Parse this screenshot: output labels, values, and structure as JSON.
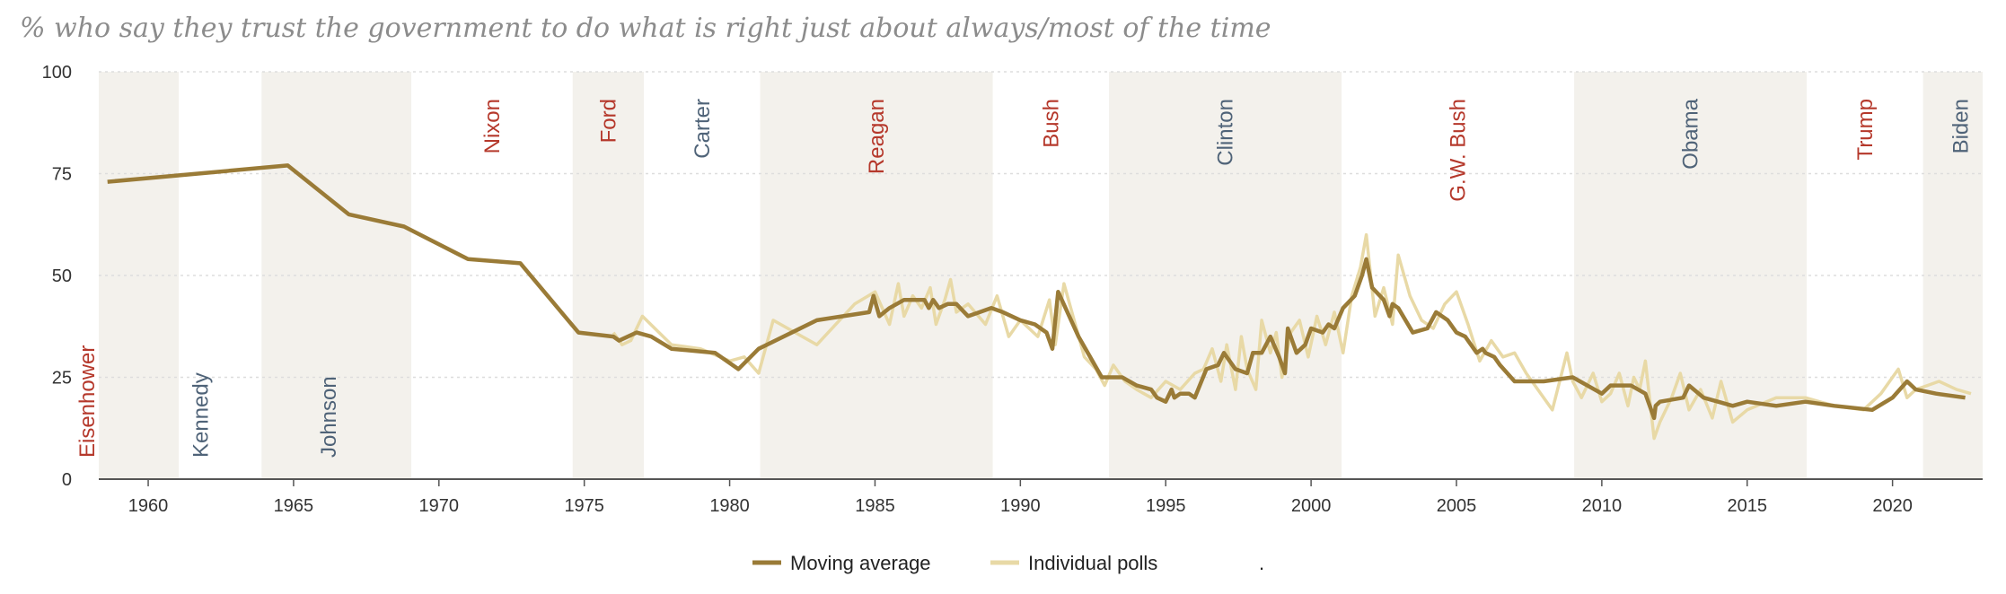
{
  "title": "% who say they trust the government to do what is right just about always/most of the time",
  "colors": {
    "republican": "#b5382b",
    "democrat": "#4f6378",
    "shade": "#f3f1ec",
    "moving_average": "#9a7b37",
    "individual_polls": "#e8d9a6"
  },
  "chart_data": {
    "type": "line",
    "title": "% who say they trust the government to do what is right just about always/most of the time",
    "xlabel": "",
    "ylabel": "",
    "xlim": [
      1958.3,
      1962.0
    ],
    "x_ticks": [
      "1960",
      "1965",
      "1970",
      "1975",
      "1980",
      "1985",
      "1990",
      "1995",
      "2000",
      "2005",
      "2010",
      "2015",
      "2020"
    ],
    "x_tick_values": [
      1960,
      1965,
      1970,
      1975,
      1980,
      1985,
      1990,
      1995,
      2000,
      2005,
      2010,
      2015,
      2020
    ],
    "ylim": [
      0,
      100
    ],
    "y_ticks": [
      "0",
      "25",
      "50",
      "75",
      "100"
    ],
    "y_tick_values": [
      0,
      25,
      50,
      75,
      100
    ],
    "grid": true,
    "legend_position": "bottom",
    "legend_extra": ".",
    "presidents": [
      {
        "name": "Eisenhower",
        "start": 1958.3,
        "end": 1961.05,
        "party": "republican",
        "label_pos": "bottom",
        "shaded": true
      },
      {
        "name": "Kennedy",
        "start": 1961.05,
        "end": 1963.9,
        "party": "democrat",
        "label_pos": "bottom",
        "shaded": false
      },
      {
        "name": "Johnson",
        "start": 1963.9,
        "end": 1969.05,
        "party": "democrat",
        "label_pos": "bottom",
        "shaded": true
      },
      {
        "name": "Nixon",
        "start": 1969.05,
        "end": 1974.6,
        "party": "republican",
        "label_pos": "top",
        "shaded": false
      },
      {
        "name": "Ford",
        "start": 1974.6,
        "end": 1977.05,
        "party": "republican",
        "label_pos": "top",
        "shaded": true
      },
      {
        "name": "Carter",
        "start": 1977.05,
        "end": 1981.05,
        "party": "democrat",
        "label_pos": "top",
        "shaded": false
      },
      {
        "name": "Reagan",
        "start": 1981.05,
        "end": 1989.05,
        "party": "republican",
        "label_pos": "top",
        "shaded": true
      },
      {
        "name": "Bush",
        "start": 1989.05,
        "end": 1993.05,
        "party": "republican",
        "label_pos": "top",
        "shaded": false
      },
      {
        "name": "Clinton",
        "start": 1993.05,
        "end": 2001.05,
        "party": "democrat",
        "label_pos": "top",
        "shaded": true
      },
      {
        "name": "G.W. Bush",
        "start": 2001.05,
        "end": 2009.05,
        "party": "republican",
        "label_pos": "top",
        "shaded": false
      },
      {
        "name": "Obama",
        "start": 2009.05,
        "end": 2017.05,
        "party": "democrat",
        "label_pos": "top",
        "shaded": true
      },
      {
        "name": "Trump",
        "start": 2017.05,
        "end": 2021.05,
        "party": "republican",
        "label_pos": "top",
        "shaded": false
      },
      {
        "name": "Biden",
        "start": 2021.05,
        "end": 2023.1,
        "party": "democrat",
        "label_pos": "top",
        "shaded": true
      }
    ],
    "series": [
      {
        "name": "Moving average",
        "x": [
          1958.6,
          1964.8,
          1966.9,
          1968.8,
          1971.0,
          1972.8,
          1974.8,
          1976.0,
          1976.2,
          1976.8,
          1977.3,
          1978.0,
          1979.5,
          1980.3,
          1981.0,
          1983.0,
          1984.8,
          1984.95,
          1985.15,
          1985.5,
          1986.0,
          1986.7,
          1986.85,
          1987.0,
          1987.2,
          1987.5,
          1987.8,
          1988.2,
          1988.6,
          1989.0,
          1989.4,
          1990.0,
          1990.5,
          1990.9,
          1991.1,
          1991.3,
          1992.0,
          1992.8,
          1993.5,
          1994.0,
          1994.5,
          1994.7,
          1995.0,
          1995.2,
          1995.3,
          1995.5,
          1995.8,
          1996.0,
          1996.4,
          1996.8,
          1997.0,
          1997.4,
          1997.8,
          1998.0,
          1998.3,
          1998.6,
          1998.9,
          1999.1,
          1999.2,
          1999.5,
          1999.8,
          2000.0,
          2000.4,
          2000.6,
          2000.8,
          2001.1,
          2001.5,
          2001.75,
          2001.9,
          2002.1,
          2002.5,
          2002.7,
          2002.8,
          2003.0,
          2003.5,
          2004.0,
          2004.3,
          2004.7,
          2005.0,
          2005.3,
          2005.7,
          2005.9,
          2006.0,
          2006.3,
          2006.5,
          2007.0,
          2007.5,
          2008.0,
          2009.0,
          2009.5,
          2010.0,
          2010.3,
          2010.6,
          2011.0,
          2011.5,
          2011.8,
          2011.85,
          2012.0,
          2012.8,
          2013.0,
          2013.5,
          2014.0,
          2014.5,
          2015.0,
          2016.0,
          2017.0,
          2018.0,
          2019.3,
          2020.0,
          2020.5,
          2020.8,
          2021.5,
          2022.5
        ],
        "y": [
          73,
          77,
          65,
          62,
          54,
          53,
          36,
          35,
          34,
          36,
          35,
          32,
          31,
          27,
          32,
          39,
          41,
          45,
          40,
          42,
          44,
          44,
          42,
          44,
          42,
          43,
          43,
          40,
          41,
          42,
          41,
          39,
          38,
          36,
          32,
          46,
          35,
          25,
          25,
          23,
          22,
          20,
          19,
          22,
          20,
          21,
          21,
          20,
          27,
          28,
          31,
          27,
          26,
          31,
          31,
          35,
          30,
          26,
          37,
          31,
          33,
          37,
          36,
          38,
          37,
          42,
          45,
          50,
          54,
          47,
          44,
          40,
          43,
          42,
          36,
          37,
          41,
          39,
          36,
          35,
          31,
          32,
          31,
          30,
          28,
          24,
          24,
          24,
          25,
          23,
          21,
          23,
          23,
          23,
          21,
          15,
          18,
          19,
          20,
          23,
          20,
          19,
          18,
          19,
          18,
          19,
          18,
          17,
          20,
          24,
          22,
          21,
          20
        ]
      },
      {
        "name": "Individual polls",
        "x": [
          1976.0,
          1976.3,
          1976.6,
          1977.0,
          1978.0,
          1979.0,
          1980.0,
          1980.5,
          1981.0,
          1981.5,
          1983.0,
          1984.3,
          1985.0,
          1985.5,
          1985.8,
          1986.0,
          1986.3,
          1986.6,
          1986.9,
          1987.1,
          1987.4,
          1987.6,
          1987.8,
          1988.2,
          1988.8,
          1989.2,
          1989.6,
          1990.0,
          1990.6,
          1991.0,
          1991.2,
          1991.5,
          1992.2,
          1992.6,
          1992.9,
          1993.2,
          1993.6,
          1994.0,
          1994.5,
          1995.0,
          1995.5,
          1996.0,
          1996.3,
          1996.6,
          1996.9,
          1997.1,
          1997.4,
          1997.6,
          1997.8,
          1998.1,
          1998.3,
          1998.6,
          1998.8,
          1999.0,
          1999.3,
          1999.6,
          1999.9,
          2000.2,
          2000.5,
          2000.8,
          2001.1,
          2001.4,
          2001.7,
          2001.9,
          2002.2,
          2002.5,
          2002.8,
          2003.0,
          2003.4,
          2003.8,
          2004.2,
          2004.6,
          2005.0,
          2005.4,
          2005.8,
          2006.2,
          2006.6,
          2007.0,
          2007.4,
          2007.8,
          2008.3,
          2008.8,
          2009.0,
          2009.3,
          2009.7,
          2010.0,
          2010.3,
          2010.6,
          2010.9,
          2011.1,
          2011.3,
          2011.5,
          2011.8,
          2012.0,
          2012.4,
          2012.7,
          2013.0,
          2013.4,
          2013.8,
          2014.1,
          2014.5,
          2015.0,
          2016.0,
          2017.0,
          2018.0,
          2019.0,
          2019.6,
          2020.2,
          2020.5,
          2020.8,
          2021.2,
          2021.6,
          2022.2,
          2022.7
        ],
        "y": [
          36,
          33,
          34,
          40,
          33,
          32,
          29,
          30,
          26,
          39,
          33,
          43,
          46,
          38,
          48,
          40,
          45,
          42,
          47,
          38,
          44,
          49,
          41,
          43,
          38,
          45,
          35,
          39,
          35,
          44,
          33,
          48,
          30,
          27,
          23,
          28,
          24,
          22,
          20,
          24,
          22,
          26,
          27,
          32,
          24,
          33,
          22,
          35,
          27,
          22,
          39,
          31,
          36,
          25,
          36,
          39,
          30,
          40,
          33,
          41,
          31,
          45,
          52,
          60,
          40,
          47,
          38,
          55,
          45,
          39,
          37,
          43,
          46,
          38,
          29,
          34,
          30,
          31,
          26,
          22,
          17,
          31,
          24,
          20,
          26,
          19,
          21,
          26,
          18,
          25,
          22,
          29,
          10,
          14,
          20,
          26,
          17,
          22,
          15,
          24,
          14,
          17,
          20,
          20,
          18,
          17,
          21,
          27,
          20,
          22,
          23,
          24,
          22,
          21
        ]
      }
    ]
  }
}
